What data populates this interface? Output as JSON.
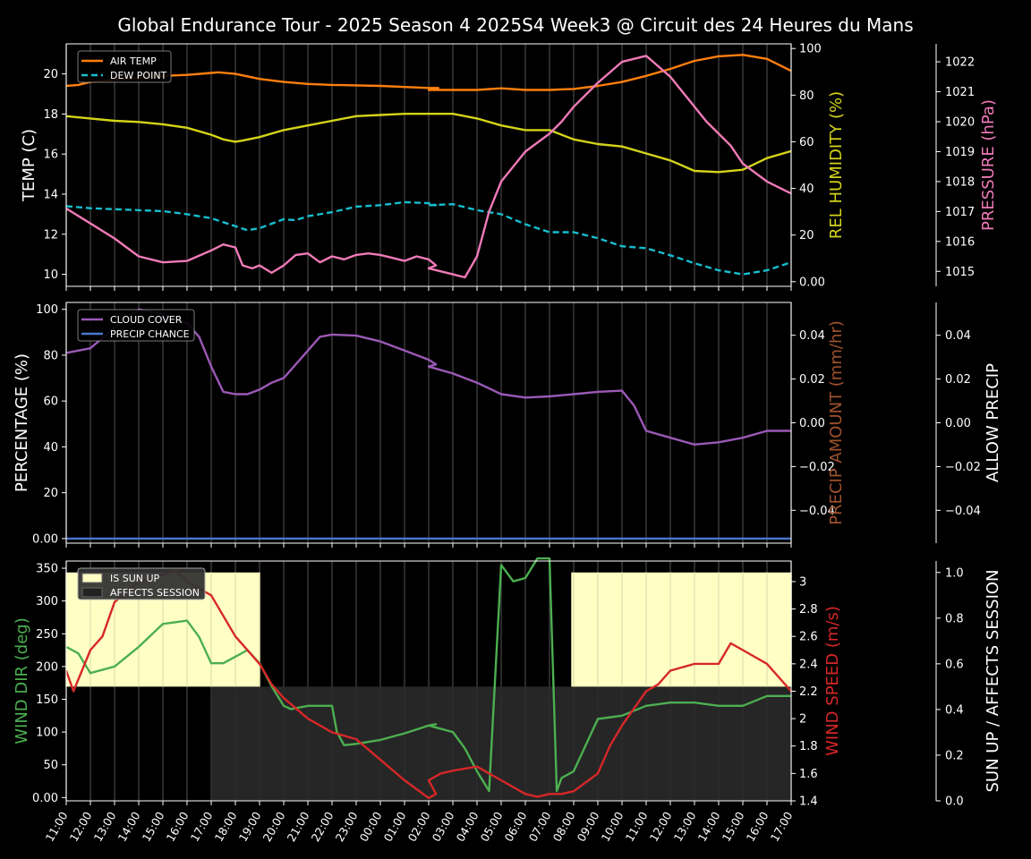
{
  "title": "Global Endurance Tour - 2025 Season 4 2025S4 Week3 @ Circuit des 24 Heures du Mans",
  "chart_data": [
    {
      "type": "line",
      "xlabels": [
        "11:00",
        "12:00",
        "13:00",
        "14:00",
        "15:00",
        "16:00",
        "17:00",
        "18:00",
        "19:00",
        "20:00",
        "21:00",
        "22:00",
        "23:00",
        "00:00",
        "01:00",
        "02:00",
        "03:00",
        "04:00",
        "05:00",
        "06:00",
        "07:00",
        "08:00",
        "09:00",
        "10:00",
        "11:00",
        "12:00",
        "13:00",
        "14:00",
        "15:00",
        "16:00",
        "17:00"
      ],
      "ylabel": "TEMP (C)",
      "ylim": [
        9.4,
        21.5
      ],
      "yticks": [
        10,
        12,
        14,
        16,
        18,
        20
      ],
      "right_axes": [
        {
          "label": "REL HUMIDITY (%)",
          "color": "#d4d41a",
          "ylim": [
            -2,
            102
          ],
          "ticks": [
            0,
            20,
            40,
            60,
            80,
            100
          ]
        },
        {
          "label": "PRESSURE (hPa)",
          "color": "#f07ab8",
          "ylim": [
            1014.5,
            1022.6
          ],
          "ticks": [
            1015,
            1016,
            1017,
            1018,
            1019,
            1020,
            1021,
            1022
          ]
        }
      ],
      "legend": [
        "AIR TEMP",
        "DEW POINT"
      ],
      "legend_position": "top-left",
      "series": [
        {
          "name": "AIR TEMP",
          "color": "#ff7f0e",
          "axis": "left",
          "style": "solid",
          "x": [
            0,
            0.5,
            1,
            2,
            3,
            4,
            5,
            6,
            6.3,
            7,
            8,
            9,
            10,
            11,
            12,
            13,
            14,
            15,
            15.4,
            15,
            16,
            17,
            18,
            19,
            20,
            21,
            22,
            23,
            24,
            25,
            26,
            27,
            28,
            29,
            30
          ],
          "y": [
            19.4,
            19.45,
            19.6,
            19.7,
            19.8,
            19.9,
            19.95,
            20.05,
            20.08,
            20.0,
            19.75,
            19.6,
            19.5,
            19.45,
            19.43,
            19.4,
            19.35,
            19.3,
            19.3,
            19.2,
            19.2,
            19.2,
            19.28,
            19.2,
            19.2,
            19.25,
            19.4,
            19.6,
            19.9,
            20.25,
            20.65,
            20.88,
            20.95,
            20.75,
            20.15
          ]
        },
        {
          "name": "DEW POINT",
          "color": "#17becf",
          "axis": "left",
          "style": "dashed",
          "x": [
            0,
            1,
            2,
            3,
            4,
            5,
            6,
            6.5,
            7,
            7.5,
            8,
            9,
            9.5,
            10,
            11,
            12,
            13,
            14,
            15,
            15.3,
            15,
            16,
            17,
            18,
            19,
            20,
            21,
            22,
            23,
            24,
            25,
            26,
            27,
            28,
            29,
            30
          ],
          "y": [
            13.4,
            13.3,
            13.25,
            13.2,
            13.15,
            13.0,
            12.8,
            12.6,
            12.4,
            12.2,
            12.3,
            12.75,
            12.7,
            12.9,
            13.1,
            13.38,
            13.45,
            13.6,
            13.55,
            13.45,
            13.45,
            13.5,
            13.2,
            13.0,
            12.5,
            12.1,
            12.1,
            11.8,
            11.4,
            11.3,
            10.95,
            10.55,
            10.2,
            10.0,
            10.2,
            10.6
          ]
        },
        {
          "name": "REL HUMIDITY",
          "color": "#d4d41a",
          "axis": "right1",
          "style": "solid",
          "x": [
            0,
            1,
            2,
            3,
            4,
            5,
            6,
            6.5,
            7,
            7.3,
            8,
            9,
            10,
            11,
            12,
            13,
            14,
            15,
            15.3,
            15,
            16,
            17,
            18,
            19,
            20,
            21,
            22,
            23,
            24,
            25,
            26,
            27,
            28,
            29,
            30
          ],
          "y": [
            71,
            70,
            69,
            68.5,
            67.5,
            66,
            63,
            61,
            60,
            60.5,
            62,
            65,
            67,
            69,
            71,
            71.5,
            72,
            72,
            72,
            72,
            72,
            70,
            67,
            65,
            65,
            61,
            59,
            58,
            55,
            52,
            47.5,
            47,
            48,
            53,
            56
          ]
        },
        {
          "name": "PRESSURE",
          "color": "#f07ab8",
          "axis": "right2",
          "style": "solid",
          "x": [
            0,
            1,
            2,
            3,
            4,
            5,
            6,
            6.5,
            7,
            7.3,
            7.7,
            8,
            8.5,
            9,
            9.5,
            10,
            10.5,
            11,
            11.5,
            12,
            12.5,
            13,
            13.5,
            14,
            14.5,
            15,
            15.3,
            15,
            16,
            16.5,
            17,
            17.5,
            18,
            19,
            19.5,
            20,
            20.5,
            21,
            22,
            23,
            24,
            25,
            26,
            26.5,
            27,
            27.5,
            28,
            29,
            30
          ],
          "y": [
            1017.1,
            1016.6,
            1016.1,
            1015.5,
            1015.3,
            1015.35,
            1015.7,
            1015.9,
            1015.8,
            1015.2,
            1015.1,
            1015.2,
            1014.95,
            1015.2,
            1015.55,
            1015.6,
            1015.3,
            1015.5,
            1015.4,
            1015.55,
            1015.6,
            1015.55,
            1015.45,
            1015.35,
            1015.5,
            1015.4,
            1015.2,
            1015.1,
            1014.9,
            1014.8,
            1015.5,
            1017.0,
            1018.0,
            1019.0,
            1019.3,
            1019.6,
            1020.0,
            1020.5,
            1021.3,
            1022.0,
            1022.2,
            1021.5,
            1020.5,
            1020.0,
            1019.6,
            1019.2,
            1018.6,
            1018.0,
            1017.6
          ]
        }
      ]
    },
    {
      "type": "line",
      "ylabel": "PERCENTAGE (%)",
      "ylim": [
        -2,
        103
      ],
      "yticks": [
        0,
        20,
        40,
        60,
        80,
        100
      ],
      "right_axes": [
        {
          "label": "PRECIP AMOUNT (mm/hr)",
          "color": "#a0522d",
          "ylim": [
            -0.055,
            0.055
          ],
          "ticks": [
            -0.04,
            -0.02,
            0.0,
            0.02,
            0.04
          ]
        },
        {
          "label": "ALLOW PRECIP",
          "color": "#ffffff",
          "ylim": [
            -0.055,
            0.055
          ],
          "ticks": [
            -0.04,
            -0.02,
            0.0,
            0.02,
            0.04
          ]
        }
      ],
      "legend": [
        "CLOUD COVER",
        "PRECIP CHANCE"
      ],
      "legend_position": "top-left",
      "series": [
        {
          "name": "CLOUD COVER",
          "color": "#9b59b6",
          "x": [
            0,
            1,
            2,
            3,
            4,
            5,
            5.5,
            6,
            6.5,
            7,
            7.5,
            8,
            8.5,
            9,
            10,
            10.5,
            11,
            12,
            13,
            14,
            15,
            15.3,
            15,
            16,
            17,
            18,
            19,
            20,
            21,
            22,
            23,
            23.5,
            24,
            25,
            26,
            27,
            28,
            29,
            30
          ],
          "y": [
            81,
            83,
            92,
            100,
            98,
            94,
            88,
            75,
            64,
            63,
            63,
            65,
            68,
            70,
            82,
            88,
            89,
            88.5,
            86,
            82,
            78,
            76,
            75,
            72,
            68,
            63,
            61.5,
            62,
            63,
            64,
            64.5,
            58,
            47,
            44,
            41,
            42,
            44,
            47,
            47
          ]
        },
        {
          "name": "PRECIP CHANCE",
          "color": "#4878cf",
          "x": [
            0,
            30
          ],
          "y": [
            0,
            0
          ]
        }
      ]
    },
    {
      "type": "line",
      "ylabel": "WIND DIR (deg)",
      "ylim": [
        -5,
        361
      ],
      "yticks": [
        0,
        50,
        100,
        150,
        200,
        250,
        300,
        350
      ],
      "right_axes": [
        {
          "label": "WIND SPEED (m/s)",
          "color": "#d62728",
          "ylim": [
            1.4,
            3.15
          ],
          "ticks": [
            1.4,
            1.6,
            1.8,
            2.0,
            2.2,
            2.4,
            2.6,
            2.8,
            3.0
          ]
        },
        {
          "label": "SUN UP / AFFECTS SESSION",
          "color": "#ffffff",
          "ylim": [
            0,
            1.05
          ],
          "ticks": [
            0.0,
            0.2,
            0.4,
            0.6,
            0.8,
            1.0
          ]
        }
      ],
      "legend": [
        "IS SUN UP",
        "AFFECTS SESSION"
      ],
      "legend_position": "top-left",
      "sun_up_spans": [
        [
          0,
          8
        ],
        [
          20.9,
          30
        ]
      ],
      "affects_session_span": [
        6,
        30
      ],
      "series": [
        {
          "name": "WIND DIR",
          "color": "#4caf50",
          "x": [
            0,
            0.5,
            1,
            2,
            3,
            4,
            5,
            5.5,
            6,
            6.5,
            7,
            7.5,
            8,
            8.5,
            9,
            9.3,
            10,
            11,
            11.2,
            11.5,
            12,
            13,
            14,
            15,
            15.3,
            15,
            16,
            16.5,
            17,
            17.5,
            18,
            18.5,
            19,
            19.5,
            20,
            20.3,
            20.5,
            21,
            21.5,
            22,
            23,
            24,
            25,
            26,
            27,
            28,
            29,
            30
          ],
          "y": [
            230,
            220,
            190,
            200,
            230,
            265,
            270,
            245,
            205,
            205,
            215,
            225,
            205,
            170,
            140,
            135,
            140,
            140,
            100,
            80,
            82,
            88,
            98,
            110,
            112,
            110,
            100,
            75,
            40,
            10,
            355,
            330,
            335,
            365,
            365,
            10,
            30,
            40,
            80,
            120,
            125,
            140,
            145,
            145,
            140,
            140,
            155,
            155
          ]
        },
        {
          "name": "WIND SPEED",
          "color": "#d62728",
          "x": [
            0,
            0.3,
            1,
            1.5,
            2,
            3,
            4,
            4.5,
            5,
            6,
            6.5,
            7,
            8,
            8.5,
            9,
            10,
            11,
            12,
            13,
            14,
            15,
            15.3,
            15,
            15.5,
            16,
            17,
            17.5,
            18,
            19,
            19.5,
            20,
            20.5,
            21,
            22,
            22.5,
            23,
            24,
            24.5,
            25,
            26,
            27,
            27.5,
            28,
            29,
            30
          ],
          "y": [
            2.35,
            2.2,
            2.5,
            2.6,
            2.85,
            3.0,
            3.05,
            3.08,
            3.0,
            2.9,
            2.75,
            2.6,
            2.4,
            2.25,
            2.15,
            2.0,
            1.9,
            1.85,
            1.7,
            1.55,
            1.42,
            1.45,
            1.55,
            1.6,
            1.62,
            1.65,
            1.6,
            1.55,
            1.45,
            1.43,
            1.45,
            1.45,
            1.47,
            1.6,
            1.8,
            1.95,
            2.2,
            2.25,
            2.35,
            2.4,
            2.4,
            2.55,
            2.5,
            2.4,
            2.2
          ]
        }
      ]
    }
  ]
}
